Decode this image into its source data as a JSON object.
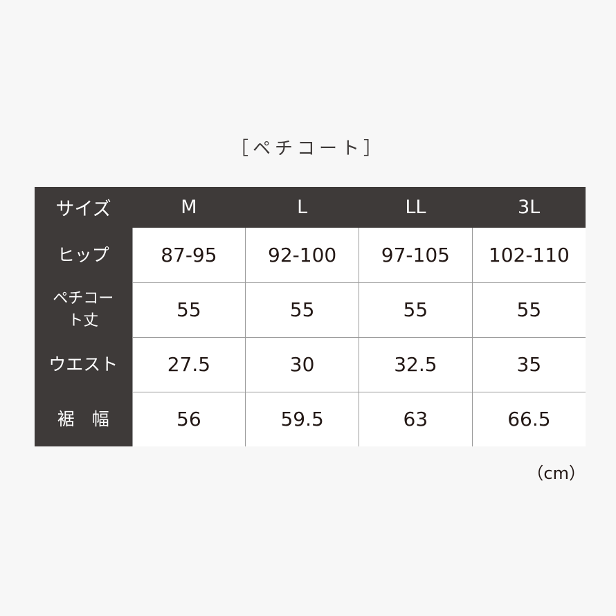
{
  "title": "［ペチコート］",
  "table": {
    "header": [
      "サイズ",
      "M",
      "L",
      "LL",
      "3L"
    ],
    "rows": [
      {
        "label": "ヒップ",
        "values": [
          "87-95",
          "92-100",
          "97-105",
          "102-110"
        ]
      },
      {
        "label": "ペチコート丈",
        "values": [
          "55",
          "55",
          "55",
          "55"
        ]
      },
      {
        "label": "ウエスト",
        "values": [
          "27.5",
          "30",
          "32.5",
          "35"
        ]
      },
      {
        "label": "裾　幅",
        "values": [
          "56",
          "59.5",
          "63",
          "66.5"
        ]
      }
    ]
  },
  "unit": "（cm）",
  "colors": {
    "header_bg": "#3e3a39",
    "background": "#f7f7f7",
    "grid": "#9a9a9a"
  }
}
